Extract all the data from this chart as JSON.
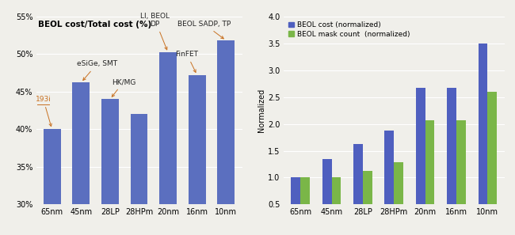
{
  "categories": [
    "65nm",
    "45nm",
    "28LP",
    "28HPm",
    "20nm",
    "16nm",
    "10nm"
  ],
  "chart1": {
    "title": "BEOL cost/Total cost (%)",
    "values": [
      40.0,
      46.2,
      44.0,
      42.0,
      50.2,
      47.2,
      51.8
    ],
    "bar_color": "#5b6fbf",
    "ylim": [
      30,
      55
    ],
    "yticks": [
      30,
      35,
      40,
      45,
      50,
      55
    ],
    "ytick_labels": [
      "30%",
      "35%",
      "40%",
      "45%",
      "50%",
      "55%"
    ]
  },
  "chart2": {
    "beol_cost": [
      1.0,
      1.35,
      1.62,
      1.87,
      2.67,
      2.67,
      3.5
    ],
    "beol_mask": [
      1.0,
      1.0,
      1.13,
      1.29,
      2.07,
      2.07,
      2.6
    ],
    "bar_color_cost": "#4f5fbf",
    "bar_color_mask": "#7ab648",
    "ylim": [
      0.5,
      4.0
    ],
    "yticks": [
      0.5,
      1.0,
      1.5,
      2.0,
      2.5,
      3.0,
      3.5,
      4.0
    ],
    "ylabel": "Normalized",
    "legend": [
      "BEOL cost (normalized)",
      "BEOL mask count  (normalized)"
    ]
  },
  "bg_color": "#f0efea",
  "bar_bg": "#e8e8e0"
}
